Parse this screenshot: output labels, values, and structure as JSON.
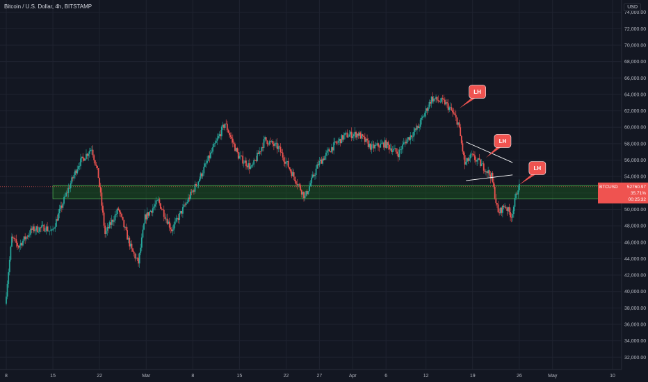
{
  "header": {
    "title": "Bitcoin / U.S. Dollar, 4h, BITSTAMP",
    "currency": "USD"
  },
  "colors": {
    "background": "#131722",
    "up": "#26a69a",
    "down": "#ef5350",
    "grid": "#1f2330",
    "zone_fill": "#1b5e20",
    "zone_stroke": "#4caf50",
    "label_bg": "#ef5350"
  },
  "chart_data": {
    "type": "candlestick",
    "title": "Bitcoin / U.S. Dollar, 4h, BITSTAMP",
    "xlabel": "",
    "ylabel": "USD",
    "ylim": [
      30500,
      75500
    ],
    "grid": true,
    "y_ticks": [
      32000,
      34000,
      36000,
      38000,
      40000,
      42000,
      44000,
      46000,
      48000,
      50000,
      52000,
      54000,
      56000,
      58000,
      60000,
      62000,
      64000,
      66000,
      68000,
      70000,
      72000,
      74000
    ],
    "x_ticks": [
      {
        "date": "2021-02-08",
        "label": "8"
      },
      {
        "date": "2021-02-15",
        "label": "15"
      },
      {
        "date": "2021-02-22",
        "label": "22"
      },
      {
        "date": "2021-03-01",
        "label": "Mar"
      },
      {
        "date": "2021-03-08",
        "label": "8"
      },
      {
        "date": "2021-03-15",
        "label": "15"
      },
      {
        "date": "2021-03-22",
        "label": "22"
      },
      {
        "date": "2021-03-27",
        "label": "27"
      },
      {
        "date": "2021-04-01",
        "label": "Apr"
      },
      {
        "date": "2021-04-06",
        "label": "6"
      },
      {
        "date": "2021-04-12",
        "label": "12"
      },
      {
        "date": "2021-04-19",
        "label": "19"
      },
      {
        "date": "2021-04-26",
        "label": "26"
      },
      {
        "date": "2021-05-01",
        "label": "May"
      },
      {
        "date": "2021-05-10",
        "label": "10"
      }
    ],
    "price_path": [
      {
        "date": "2021-02-08",
        "price": 38500
      },
      {
        "date": "2021-02-09",
        "price": 46500
      },
      {
        "date": "2021-02-10",
        "price": 45500
      },
      {
        "date": "2021-02-12",
        "price": 47500
      },
      {
        "date": "2021-02-14",
        "price": 47800
      },
      {
        "date": "2021-02-15",
        "price": 47200
      },
      {
        "date": "2021-02-17",
        "price": 51500
      },
      {
        "date": "2021-02-19",
        "price": 55500
      },
      {
        "date": "2021-02-21",
        "price": 57500
      },
      {
        "date": "2021-02-22",
        "price": 54000
      },
      {
        "date": "2021-02-23",
        "price": 47000
      },
      {
        "date": "2021-02-25",
        "price": 50000
      },
      {
        "date": "2021-02-27",
        "price": 45000
      },
      {
        "date": "2021-02-28",
        "price": 43500
      },
      {
        "date": "2021-03-01",
        "price": 49000
      },
      {
        "date": "2021-03-03",
        "price": 51000
      },
      {
        "date": "2021-03-05",
        "price": 47500
      },
      {
        "date": "2021-03-07",
        "price": 50500
      },
      {
        "date": "2021-03-09",
        "price": 53500
      },
      {
        "date": "2021-03-11",
        "price": 57000
      },
      {
        "date": "2021-03-13",
        "price": 60500
      },
      {
        "date": "2021-03-15",
        "price": 56500
      },
      {
        "date": "2021-03-17",
        "price": 55000
      },
      {
        "date": "2021-03-19",
        "price": 58500
      },
      {
        "date": "2021-03-21",
        "price": 57500
      },
      {
        "date": "2021-03-23",
        "price": 54500
      },
      {
        "date": "2021-03-25",
        "price": 51500
      },
      {
        "date": "2021-03-27",
        "price": 55500
      },
      {
        "date": "2021-03-29",
        "price": 57500
      },
      {
        "date": "2021-03-31",
        "price": 59000
      },
      {
        "date": "2021-04-02",
        "price": 59200
      },
      {
        "date": "2021-04-04",
        "price": 57500
      },
      {
        "date": "2021-04-06",
        "price": 58000
      },
      {
        "date": "2021-04-08",
        "price": 56800
      },
      {
        "date": "2021-04-09",
        "price": 58200
      },
      {
        "date": "2021-04-11",
        "price": 60000
      },
      {
        "date": "2021-04-13",
        "price": 63500
      },
      {
        "date": "2021-04-15",
        "price": 63000
      },
      {
        "date": "2021-04-16",
        "price": 62000
      },
      {
        "date": "2021-04-17",
        "price": 60500
      },
      {
        "date": "2021-04-18",
        "price": 55500
      },
      {
        "date": "2021-04-19",
        "price": 56500
      },
      {
        "date": "2021-04-20",
        "price": 55800
      },
      {
        "date": "2021-04-21",
        "price": 55000
      },
      {
        "date": "2021-04-22",
        "price": 54000
      },
      {
        "date": "2021-04-23",
        "price": 49500
      },
      {
        "date": "2021-04-24",
        "price": 50500
      },
      {
        "date": "2021-04-25",
        "price": 49200
      },
      {
        "date": "2021-04-26",
        "price": 52760
      }
    ],
    "zone": {
      "from_date": "2021-02-08",
      "to_date": "2021-05-09",
      "low": 51300,
      "high": 52900
    },
    "current_price_line": 52760.97,
    "price_label": {
      "symbol": "BTCUSD",
      "value": "52760.97",
      "change": "35.71%",
      "countdown": "00:25:32"
    },
    "triangle": {
      "upper": [
        {
          "date": "2021-04-18",
          "price": 58200
        },
        {
          "date": "2021-04-25",
          "price": 55700
        }
      ],
      "lower": [
        {
          "date": "2021-04-18",
          "price": 53500
        },
        {
          "date": "2021-04-25",
          "price": 54200
        }
      ]
    },
    "annotations": [
      {
        "text": "LH",
        "date": "2021-04-17",
        "price": 62300,
        "dx": 14,
        "dy": -24
      },
      {
        "text": "LH",
        "date": "2021-04-21",
        "price": 56300,
        "dx": 12,
        "dy": -24
      },
      {
        "text": "LH",
        "date": "2021-04-26",
        "price": 53000,
        "dx": 14,
        "dy": -24
      }
    ]
  }
}
